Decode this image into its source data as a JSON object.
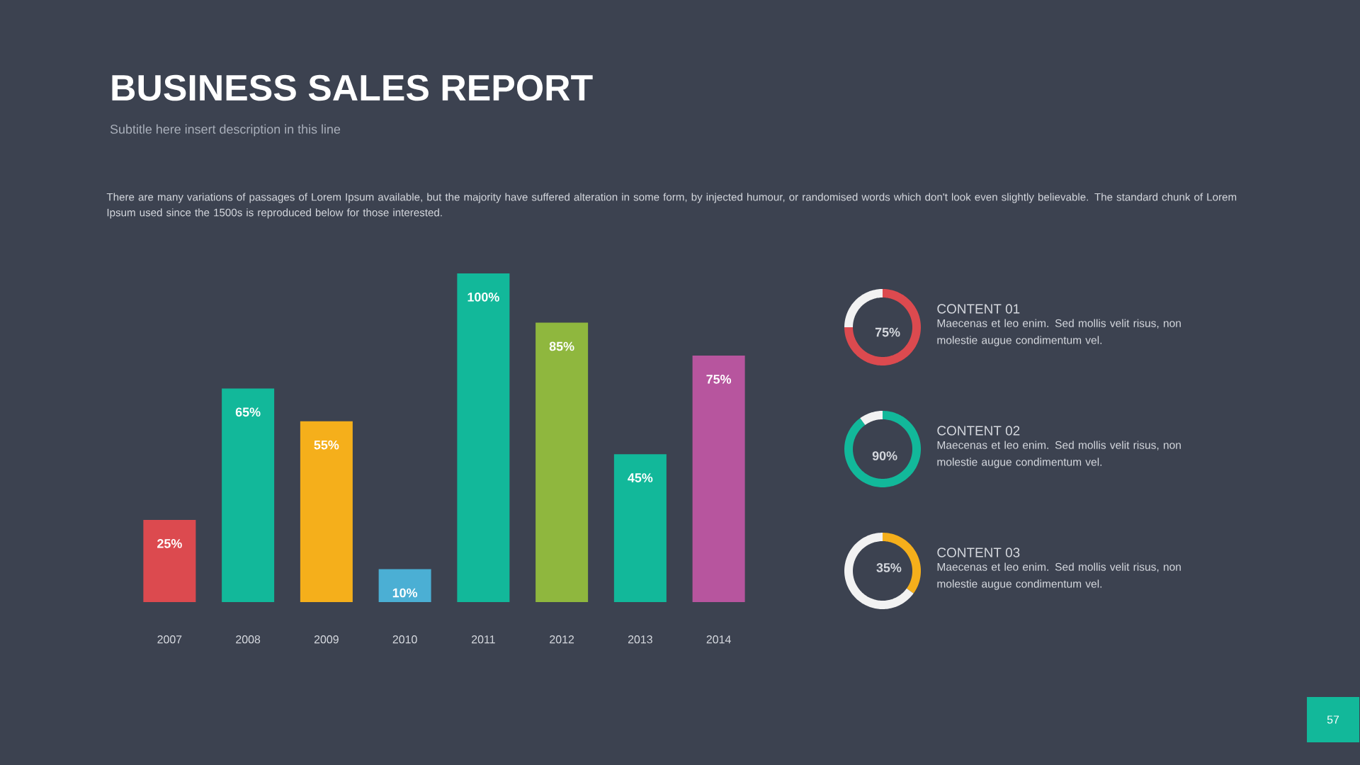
{
  "chart_data": [
    {
      "type": "bar",
      "title": "BUSINESS SALES REPORT",
      "subtitle": "Subtitle here insert  description in this line",
      "annotations": [
        "There are many variations of passages of Lorem Ipsum available, but the majority have suffered alteration in some form, by injected humour, or randomised words which don't look even slightly believable. The standard chunk of Lorem Ipsum used since the 1500s is reproduced below for those interested.",
        "57"
      ],
      "categories": [
        "2007",
        "2008",
        "2009",
        "2010",
        "2011",
        "2012",
        "2013",
        "2014"
      ],
      "values": [
        25,
        65,
        55,
        10,
        100,
        85,
        45,
        75
      ],
      "colors": [
        "#dc4a4f",
        "#12b89a",
        "#f5af1b",
        "#4bafd4",
        "#12b89a",
        "#8fb73e",
        "#12b89a",
        "#b7559e"
      ],
      "value_labels": [
        "25%",
        "65%",
        "55%",
        "10%",
        "100%",
        "85%",
        "45%",
        "75%"
      ]
    },
    {
      "type": "donut",
      "title": "CONTENT 01",
      "annotations": [
        "Maecenas et leo enim. Sed mollis velit risus, non molestie augue condimentum vel."
      ],
      "categories": [
        null,
        null
      ],
      "values": [
        75,
        25
      ],
      "colors": [
        "#dc4a4f",
        "#f2f2f2"
      ],
      "value_labels": [
        "75%",
        null
      ]
    },
    {
      "type": "donut",
      "title": "CONTENT 02",
      "annotations": [
        "Maecenas et leo enim. Sed mollis velit risus, non molestie augue condimentum vel."
      ],
      "categories": [
        null,
        null
      ],
      "values": [
        90,
        10
      ],
      "colors": [
        "#12b89a",
        "#f2f2f2"
      ],
      "value_labels": [
        "90%",
        null
      ]
    },
    {
      "type": "donut",
      "title": "CONTENT 03",
      "annotations": [
        "Maecenas et leo enim. Sed mollis velit risus, non molestie augue condimentum vel."
      ],
      "categories": [
        null,
        null
      ],
      "values": [
        35,
        65
      ],
      "colors": [
        "#f5af1b",
        "#f2f2f2"
      ],
      "value_labels": [
        "35%",
        null
      ]
    }
  ]
}
